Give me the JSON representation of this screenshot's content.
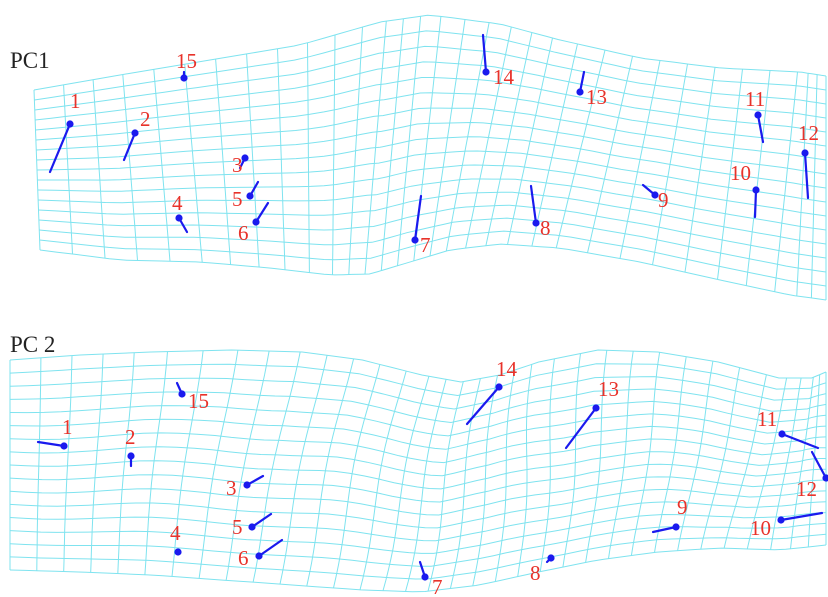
{
  "colors": {
    "grid": "#7fe3ef",
    "vector": "#1a1aee",
    "landmark_label": "#e8322a",
    "panel_label": "#222222"
  },
  "panels": [
    {
      "label": "PC1",
      "landmarks": [
        "1",
        "2",
        "3",
        "4",
        "5",
        "6",
        "7",
        "8",
        "9",
        "10",
        "11",
        "12",
        "13",
        "14",
        "15"
      ]
    },
    {
      "label": "PC 2",
      "landmarks": [
        "1",
        "2",
        "3",
        "4",
        "5",
        "6",
        "7",
        "8",
        "9",
        "10",
        "11",
        "12",
        "13",
        "14",
        "15"
      ]
    }
  ]
}
